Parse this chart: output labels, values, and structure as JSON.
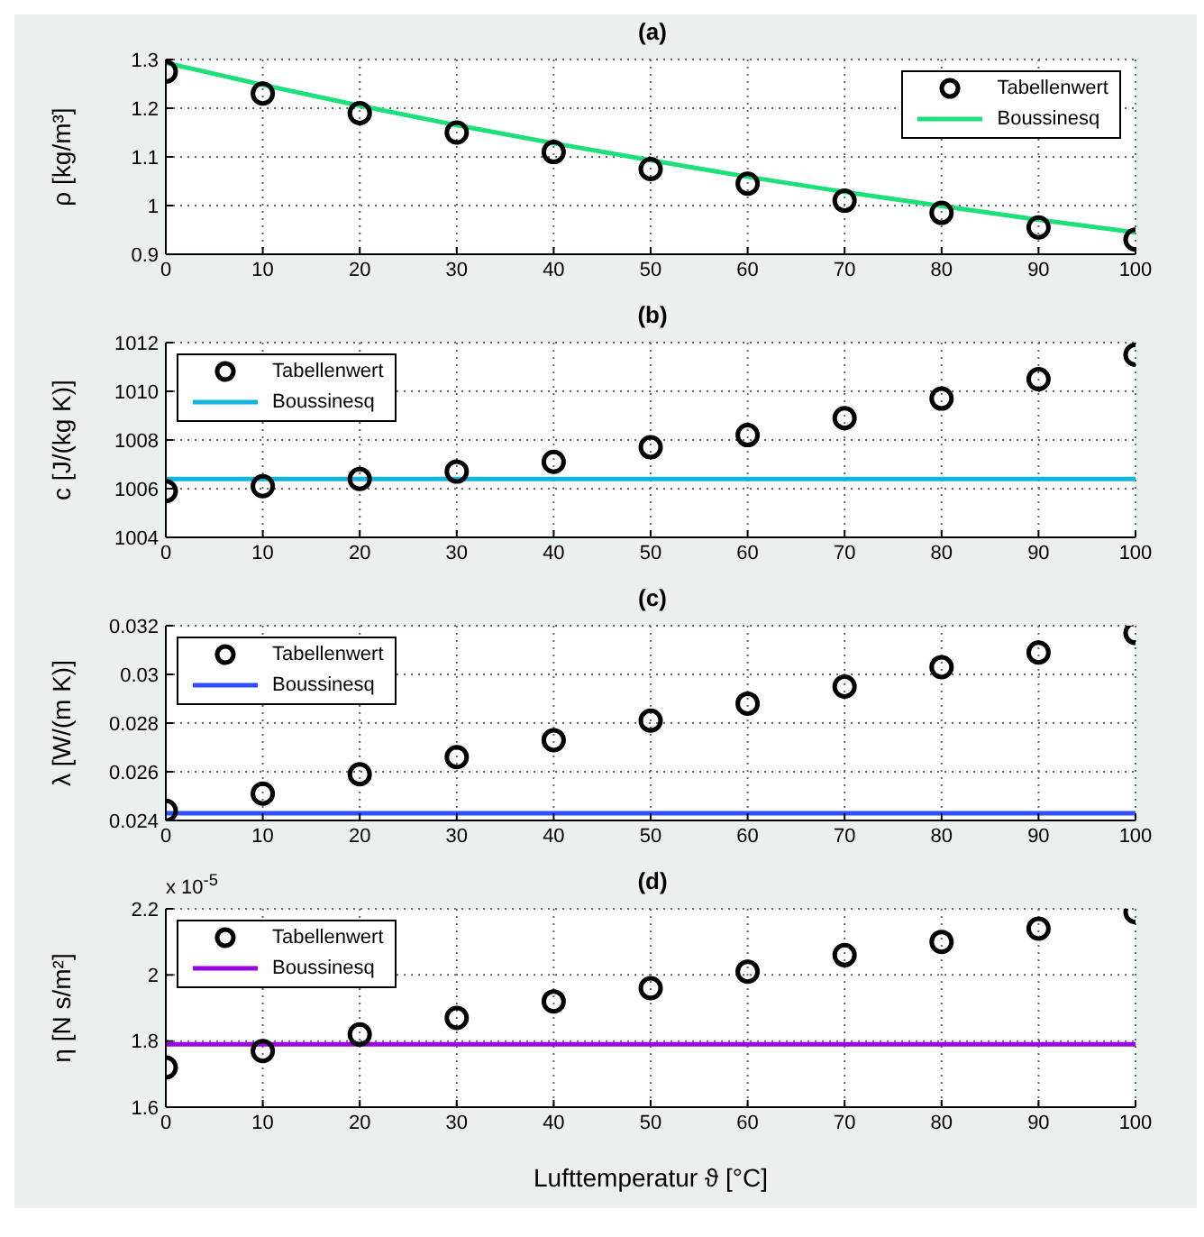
{
  "chart_data": [
    {
      "type": "scatter",
      "title": "(a)",
      "ylabel": "ρ [kg/m³]",
      "xlim": [
        0,
        100
      ],
      "xticks": [
        0,
        10,
        20,
        30,
        40,
        50,
        60,
        70,
        80,
        90,
        100
      ],
      "ylim": [
        0.9,
        1.3
      ],
      "yticks": [
        0.9,
        1,
        1.1,
        1.2,
        1.3
      ],
      "grid": true,
      "legend": "top right",
      "series": [
        {
          "name": "Tabellenwert",
          "marker": "circle",
          "color": "#000000",
          "x": [
            0,
            10,
            20,
            30,
            40,
            50,
            60,
            70,
            80,
            90,
            100
          ],
          "values": [
            1.275,
            1.23,
            1.19,
            1.15,
            1.11,
            1.075,
            1.045,
            1.01,
            0.985,
            0.955,
            0.93
          ]
        },
        {
          "name": "Boussinesq",
          "type": "line",
          "marker": "none",
          "color": "#1ee07a",
          "x": [
            0,
            10,
            20,
            30,
            40,
            50,
            60,
            70,
            80,
            90,
            100
          ],
          "values": [
            1.293,
            1.248,
            1.205,
            1.165,
            1.128,
            1.093,
            1.059,
            1.028,
            0.999,
            0.971,
            0.945
          ]
        }
      ]
    },
    {
      "type": "scatter",
      "title": "(b)",
      "ylabel": "c [J/(kg K)]",
      "xlim": [
        0,
        100
      ],
      "xticks": [
        0,
        10,
        20,
        30,
        40,
        50,
        60,
        70,
        80,
        90,
        100
      ],
      "ylim": [
        1004,
        1012
      ],
      "yticks": [
        1004,
        1006,
        1008,
        1010,
        1012
      ],
      "grid": true,
      "legend": "top left",
      "series": [
        {
          "name": "Tabellenwert",
          "marker": "circle",
          "color": "#000000",
          "x": [
            0,
            10,
            20,
            30,
            40,
            50,
            60,
            70,
            80,
            90,
            100
          ],
          "values": [
            1005.9,
            1006.1,
            1006.4,
            1006.7,
            1007.1,
            1007.7,
            1008.2,
            1008.9,
            1009.7,
            1010.5,
            1011.5
          ]
        },
        {
          "name": "Boussinesq",
          "type": "line",
          "marker": "none",
          "color": "#14b4e0",
          "x": [
            0,
            100
          ],
          "values": [
            1006.4,
            1006.4
          ]
        }
      ]
    },
    {
      "type": "scatter",
      "title": "(c)",
      "ylabel": "λ [W/(m K)]",
      "xlim": [
        0,
        100
      ],
      "xticks": [
        0,
        10,
        20,
        30,
        40,
        50,
        60,
        70,
        80,
        90,
        100
      ],
      "ylim": [
        0.024,
        0.032
      ],
      "yticks": [
        0.024,
        0.026,
        0.028,
        0.03,
        0.032
      ],
      "grid": true,
      "legend": "top left",
      "series": [
        {
          "name": "Tabellenwert",
          "marker": "circle",
          "color": "#000000",
          "x": [
            0,
            10,
            20,
            30,
            40,
            50,
            60,
            70,
            80,
            90,
            100
          ],
          "values": [
            0.0244,
            0.0251,
            0.0259,
            0.0266,
            0.0273,
            0.0281,
            0.0288,
            0.0295,
            0.0303,
            0.0309,
            0.0317
          ]
        },
        {
          "name": "Boussinesq",
          "type": "line",
          "marker": "none",
          "color": "#3050ff",
          "x": [
            0,
            100
          ],
          "values": [
            0.0243,
            0.0243
          ]
        }
      ]
    },
    {
      "type": "scatter",
      "title": "(d)",
      "ylabel": "η [N s/m²]",
      "xlabel": "Lufttemperatur ϑ [°C]",
      "annotations": [
        "x 10$^{-5}$"
      ],
      "xlim": [
        0,
        100
      ],
      "xticks": [
        0,
        10,
        20,
        30,
        40,
        50,
        60,
        70,
        80,
        90,
        100
      ],
      "ylim": [
        1.6,
        2.2
      ],
      "yticks": [
        1.6,
        1.8,
        2,
        2.2
      ],
      "grid": true,
      "legend": "top left",
      "series": [
        {
          "name": "Tabellenwert",
          "marker": "circle",
          "color": "#000000",
          "x": [
            0,
            10,
            20,
            30,
            40,
            50,
            60,
            70,
            80,
            90,
            100
          ],
          "values": [
            1.72,
            1.77,
            1.82,
            1.87,
            1.92,
            1.96,
            2.01,
            2.06,
            2.1,
            2.14,
            2.19
          ]
        },
        {
          "name": "Boussinesq",
          "type": "line",
          "marker": "none",
          "color": "#9900dd",
          "x": [
            0,
            100
          ],
          "values": [
            1.79,
            1.79
          ]
        }
      ]
    }
  ]
}
